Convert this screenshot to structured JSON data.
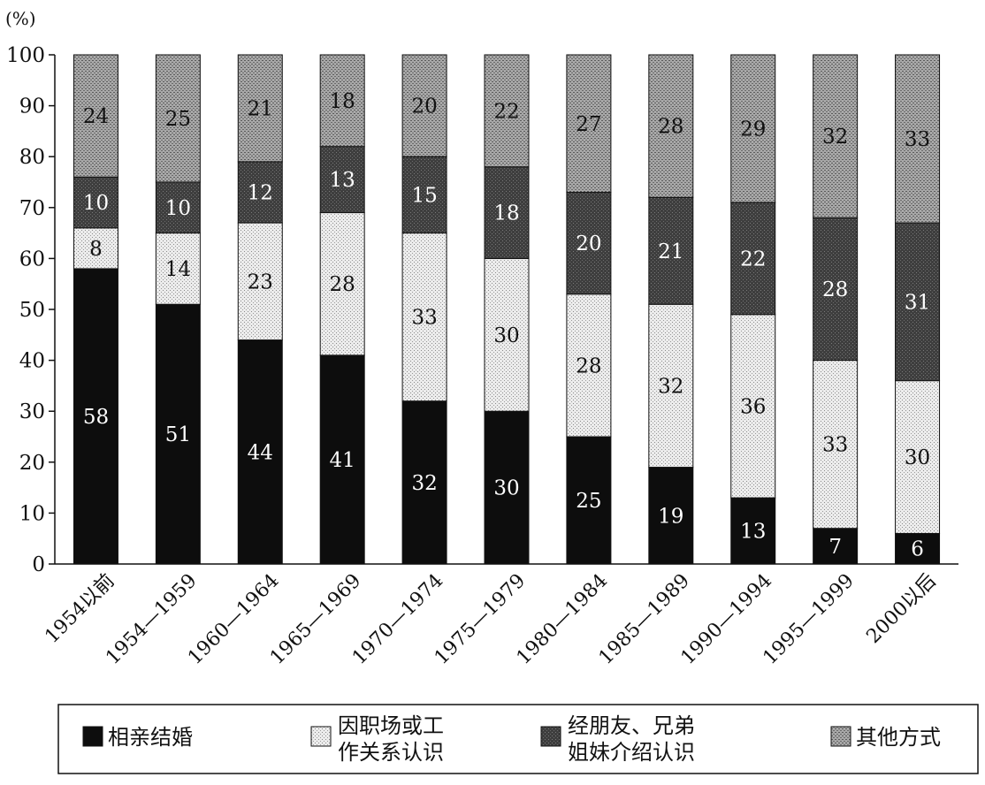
{
  "chart_data": {
    "type": "bar",
    "stacked": true,
    "unit_label": "(%)",
    "ylim": [
      0,
      100
    ],
    "yticks": [
      0,
      10,
      20,
      30,
      40,
      50,
      60,
      70,
      80,
      90,
      100
    ],
    "grid": false,
    "legend_position": "bottom",
    "categories": [
      "1954以前",
      "1954—1959",
      "1960—1964",
      "1965—1969",
      "1970—1974",
      "1975—1979",
      "1980—1984",
      "1985—1989",
      "1990—1994",
      "1995—1999",
      "2000以后"
    ],
    "series": [
      {
        "name": "相亲结婚",
        "color": "#0d0d0d",
        "text_color": "#ffffff",
        "pattern": "solid",
        "values": [
          58,
          51,
          44,
          41,
          32,
          30,
          25,
          19,
          13,
          7,
          6
        ]
      },
      {
        "name": "因职场或工作关系认识",
        "name_lines": [
          "因职场或工",
          "作关系认识"
        ],
        "color": "#e2e2e2",
        "text_color": "#111111",
        "pattern": "light",
        "values": [
          8,
          14,
          23,
          28,
          33,
          30,
          28,
          32,
          36,
          33,
          30
        ]
      },
      {
        "name": "经朋友、兄弟姐妹介绍认识",
        "name_lines": [
          "经朋友、兄弟",
          "姐妹介绍认识"
        ],
        "color": "#4a4a4a",
        "text_color": "#ffffff",
        "pattern": "dark",
        "values": [
          10,
          10,
          12,
          13,
          15,
          18,
          20,
          21,
          22,
          28,
          31
        ]
      },
      {
        "name": "其他方式",
        "color": "#9d9d9d",
        "text_color": "#111111",
        "pattern": "medium",
        "values": [
          24,
          25,
          21,
          18,
          20,
          22,
          27,
          28,
          29,
          32,
          33
        ]
      }
    ]
  }
}
